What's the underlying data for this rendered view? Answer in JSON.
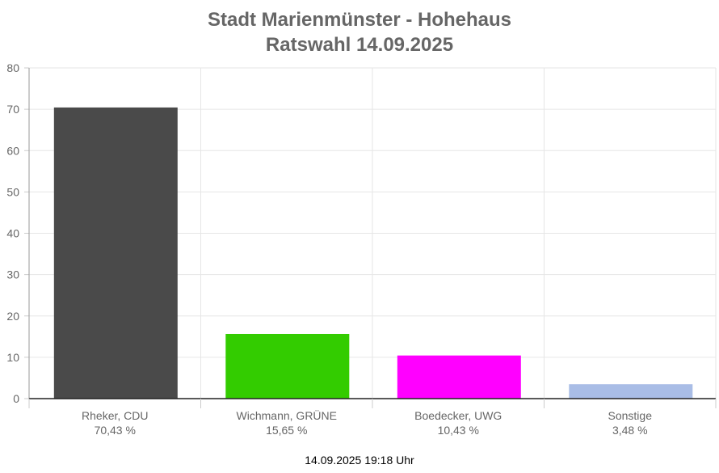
{
  "chart_data": {
    "type": "bar",
    "title": [
      "Stadt Marienmünster - Hohehaus",
      "Ratswahl 14.09.2025"
    ],
    "categories": [
      "Rheker, CDU",
      "Wichmann, GRÜNE",
      "Boedecker, UWG",
      "Sonstige"
    ],
    "value_labels": [
      "70,43 %",
      "15,65 %",
      "10,43 %",
      "3,48 %"
    ],
    "values": [
      70.43,
      15.65,
      10.43,
      3.48
    ],
    "colors": [
      "#4a4a4a",
      "#33cc00",
      "#ff00ff",
      "#a9bde6"
    ],
    "ylim": [
      0,
      80
    ],
    "yticks": [
      0,
      10,
      20,
      30,
      40,
      50,
      60,
      70,
      80
    ],
    "grid": true,
    "xlabel": "",
    "ylabel": ""
  },
  "footer": {
    "timestamp": "14.09.2025 19:18 Uhr"
  }
}
